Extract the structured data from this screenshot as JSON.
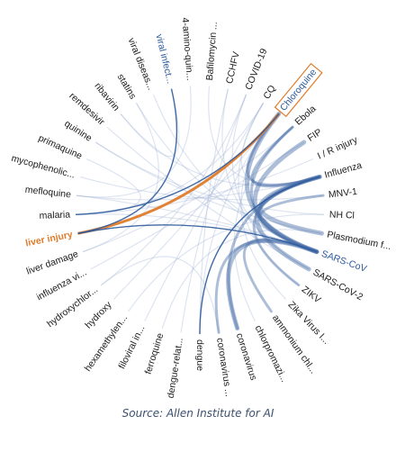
{
  "diagram": {
    "nodes": [
      {
        "label": "Chloroquine",
        "state": "boxed"
      },
      {
        "label": "Ebola"
      },
      {
        "label": "FIP"
      },
      {
        "label": "I / R injury"
      },
      {
        "label": "Influenza"
      },
      {
        "label": "MNV-1"
      },
      {
        "label": "NH Cl"
      },
      {
        "label": "Plasmodium f..."
      },
      {
        "label": "SARS-CoV",
        "state": "blue"
      },
      {
        "label": "SARS-CoV-2"
      },
      {
        "label": "ZIKV"
      },
      {
        "label": "Zika Virus I..."
      },
      {
        "label": "ammonium chl..."
      },
      {
        "label": "chlorpromazi..."
      },
      {
        "label": "coronavirus"
      },
      {
        "label": "coronavirus ..."
      },
      {
        "label": "dengue"
      },
      {
        "label": "dengue-relat..."
      },
      {
        "label": "ferroquine"
      },
      {
        "label": "filoviral in..."
      },
      {
        "label": "hexamethylen..."
      },
      {
        "label": "hydroxy"
      },
      {
        "label": "hydroxychlor..."
      },
      {
        "label": "influenza vi..."
      },
      {
        "label": "liver damage"
      },
      {
        "label": "liver injury",
        "state": "orange"
      },
      {
        "label": "malaria"
      },
      {
        "label": "mefloquine"
      },
      {
        "label": "mycophenolic..."
      },
      {
        "label": "primaquine"
      },
      {
        "label": "quinine"
      },
      {
        "label": "remdesivir"
      },
      {
        "label": "ribavirin"
      },
      {
        "label": "statins"
      },
      {
        "label": "viral diseas..."
      },
      {
        "label": "viral infect...",
        "state": "blue"
      },
      {
        "label": "4-amino-quin..."
      },
      {
        "label": "Bafilomycin ..."
      },
      {
        "label": "CCHFV"
      },
      {
        "label": "COVID-19"
      },
      {
        "label": "CQ"
      }
    ],
    "highlight_links": [
      {
        "source": "liver injury",
        "target": "Chloroquine",
        "color": "#e07b2a"
      },
      {
        "source": "liver injury",
        "target": "viral infect...",
        "color": "#2c5a9c"
      },
      {
        "source": "liver injury",
        "target": "SARS-CoV",
        "color": "#2c5a9c"
      },
      {
        "source": "malaria",
        "target": "Chloroquine",
        "color": "#2c5a9c"
      },
      {
        "source": "dengue",
        "target": "Influenza",
        "color": "#2c5a9c"
      }
    ],
    "bundle_links": [
      {
        "source": "Chloroquine",
        "target": "SARS-CoV"
      },
      {
        "source": "Chloroquine",
        "target": "Influenza"
      },
      {
        "source": "Ebola",
        "target": "SARS-CoV"
      },
      {
        "source": "FIP",
        "target": "SARS-CoV"
      },
      {
        "source": "Influenza",
        "target": "SARS-CoV"
      },
      {
        "source": "MNV-1",
        "target": "SARS-CoV"
      },
      {
        "source": "Influenza",
        "target": "SARS-CoV-2"
      },
      {
        "source": "Influenza",
        "target": "ZIKV"
      },
      {
        "source": "Influenza",
        "target": "coronavirus"
      },
      {
        "source": "SARS-CoV",
        "target": "coronavirus"
      },
      {
        "source": "SARS-CoV",
        "target": "coronavirus ..."
      },
      {
        "source": "SARS-CoV",
        "target": "ammonium chl..."
      },
      {
        "source": "Influenza",
        "target": "Plasmodium f..."
      },
      {
        "source": "Ebola",
        "target": "Influenza"
      }
    ],
    "faint_links": [
      [
        "CQ",
        "malaria"
      ],
      [
        "COVID-19",
        "hydroxychlor..."
      ],
      [
        "CCHFV",
        "dengue"
      ],
      [
        "Bafilomycin ...",
        "Influenza"
      ],
      [
        "4-amino-quin...",
        "mefloquine"
      ],
      [
        "statins",
        "SARS-CoV"
      ],
      [
        "ribavirin",
        "Influenza"
      ],
      [
        "remdesivir",
        "SARS-CoV-2"
      ],
      [
        "quinine",
        "Plasmodium f..."
      ],
      [
        "primaquine",
        "malaria"
      ],
      [
        "mycophenolic...",
        "MNV-1"
      ],
      [
        "mefloquine",
        "SARS-CoV"
      ],
      [
        "liver damage",
        "Ebola"
      ],
      [
        "influenza vi...",
        "FIP"
      ],
      [
        "hydroxy",
        "Chloroquine"
      ],
      [
        "hexamethylen...",
        "NH Cl"
      ],
      [
        "filoviral in...",
        "CQ"
      ],
      [
        "ferroquine",
        "Plasmodium f..."
      ],
      [
        "dengue-relat...",
        "COVID-19"
      ],
      [
        "chlorpromazi...",
        "Ebola"
      ],
      [
        "Zika Virus I...",
        "Chloroquine"
      ],
      [
        "ZIKV",
        "CQ"
      ],
      [
        "I / R injury",
        "malaria"
      ],
      [
        "viral diseas...",
        "SARS-CoV"
      ],
      [
        "NH Cl",
        "quinine"
      ],
      [
        "COVID-19",
        "SARS-CoV-2"
      ],
      [
        "CQ",
        "Influenza"
      ],
      [
        "hydroxychlor...",
        "coronavirus ..."
      ],
      [
        "statins",
        "liver damage"
      ],
      [
        "ribavirin",
        "viral infect..."
      ],
      [
        "malaria",
        "SARS-CoV"
      ],
      [
        "mefloquine",
        "Influenza"
      ],
      [
        "Chloroquine",
        "dengue"
      ],
      [
        "CCHFV",
        "SARS-CoV-2"
      ]
    ]
  },
  "caption": "Source: Allen Institute for AI",
  "colors": {
    "orange": "#e07b2a",
    "blue": "#2c5a9c",
    "bundle": "#4a6fa8",
    "faint": "#9db3d3"
  }
}
